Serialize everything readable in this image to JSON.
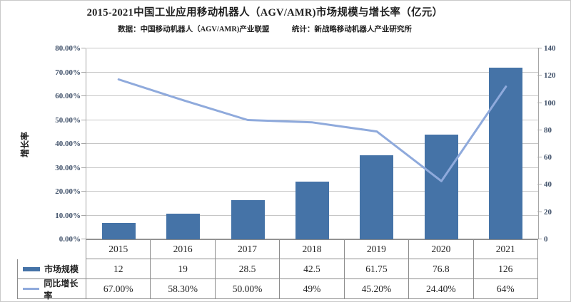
{
  "chart_data": {
    "type": "bar+line",
    "title": "2015-2021中国工业应用移动机器人（AGV/AMR)市场规模与增长率（亿元）",
    "subtitle": "数据：中国移动机器人（AGV/AMR)产业联盟　　　统计：新战略移动机器人产业研究所",
    "categories": [
      "2015",
      "2016",
      "2017",
      "2018",
      "2019",
      "2020",
      "2021"
    ],
    "series": [
      {
        "name": "市场规模",
        "type": "bar",
        "axis": "right",
        "values": [
          12,
          19,
          28.5,
          42.5,
          61.75,
          76.8,
          126
        ],
        "labels": [
          "12",
          "19",
          "28.5",
          "42.5",
          "61.75",
          "76.8",
          "126"
        ],
        "color": "#4573A7"
      },
      {
        "name": "同比增长率",
        "type": "line",
        "axis": "left",
        "values": [
          67,
          58.3,
          50,
          49,
          45.2,
          24.4,
          64
        ],
        "labels": [
          "67.00%",
          "58.30%",
          "50.00%",
          "49%",
          "45.20%",
          "24.40%",
          "64%"
        ],
        "color": "#8FAADC"
      }
    ],
    "left_axis": {
      "label": "增长率",
      "min": 0,
      "max": 80,
      "ticks": [
        "0.00%",
        "10.00%",
        "20.00%",
        "30.00%",
        "40.00%",
        "50.00%",
        "60.00%",
        "70.00%",
        "80.00%"
      ]
    },
    "right_axis": {
      "min": 0,
      "max": 140,
      "ticks": [
        "0",
        "20",
        "40",
        "60",
        "80",
        "100",
        "120",
        "140"
      ]
    },
    "grid": true,
    "legend_position": "table-left"
  },
  "colors": {
    "bar": "#4573A7",
    "line": "#8FAADC",
    "gridline": "#C6C6C6",
    "axis_line": "#A6A6A6",
    "axis_text": "#3F5069",
    "table_border": "#8C8C8C"
  }
}
